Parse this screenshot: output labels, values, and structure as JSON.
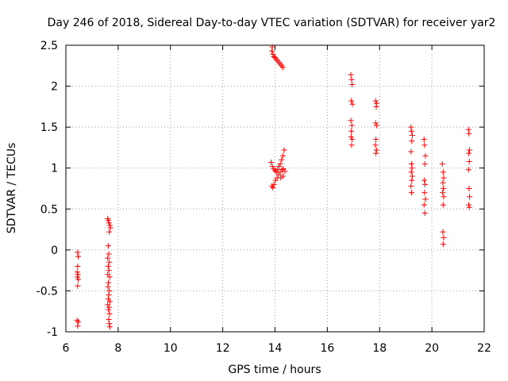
{
  "chart_data": {
    "type": "scatter",
    "title": "Day 246 of 2018, Sidereal Day-to-day VTEC variation (SDTVAR) for receiver yar2",
    "xlabel": "GPS time / hours",
    "ylabel": "SDTVAR / TECUs",
    "xlim": [
      6,
      22
    ],
    "ylim": [
      -1,
      2.5
    ],
    "xticks": [
      6,
      8,
      10,
      12,
      14,
      16,
      18,
      20,
      22
    ],
    "yticks": [
      -1,
      -0.5,
      0,
      0.5,
      1,
      1.5,
      2,
      2.5
    ],
    "xtick_labels": [
      "6",
      "8",
      "10",
      "12",
      "14",
      "16",
      "18",
      "20",
      "22"
    ],
    "ytick_labels": [
      "-1",
      "-0.5",
      "0",
      "0.5",
      "1",
      "1.5",
      "2",
      "2.5"
    ],
    "grid": true,
    "marker": "+",
    "marker_color": "#ff0000",
    "series": [
      {
        "name": "SDTVAR",
        "points": [
          [
            6.45,
            -0.03
          ],
          [
            6.47,
            -0.08
          ],
          [
            6.45,
            -0.2
          ],
          [
            6.43,
            -0.27
          ],
          [
            6.46,
            -0.3
          ],
          [
            6.44,
            -0.33
          ],
          [
            6.47,
            -0.36
          ],
          [
            6.45,
            -0.44
          ],
          [
            6.43,
            -0.86
          ],
          [
            6.47,
            -0.88
          ],
          [
            6.45,
            -0.93
          ],
          [
            7.6,
            0.38
          ],
          [
            7.63,
            0.36
          ],
          [
            7.65,
            0.33
          ],
          [
            7.68,
            0.3
          ],
          [
            7.7,
            0.27
          ],
          [
            7.66,
            0.22
          ],
          [
            7.62,
            0.05
          ],
          [
            7.64,
            -0.05
          ],
          [
            7.6,
            -0.1
          ],
          [
            7.66,
            -0.15
          ],
          [
            7.62,
            -0.2
          ],
          [
            7.65,
            -0.25
          ],
          [
            7.6,
            -0.3
          ],
          [
            7.67,
            -0.33
          ],
          [
            7.63,
            -0.4
          ],
          [
            7.61,
            -0.45
          ],
          [
            7.66,
            -0.5
          ],
          [
            7.64,
            -0.55
          ],
          [
            7.62,
            -0.6
          ],
          [
            7.68,
            -0.63
          ],
          [
            7.6,
            -0.67
          ],
          [
            7.65,
            -0.7
          ],
          [
            7.63,
            -0.73
          ],
          [
            7.67,
            -0.78
          ],
          [
            7.64,
            -0.85
          ],
          [
            7.66,
            -0.9
          ],
          [
            7.68,
            -0.94
          ],
          [
            13.9,
            2.48
          ],
          [
            13.88,
            2.43
          ],
          [
            13.92,
            2.39
          ],
          [
            13.95,
            2.36
          ],
          [
            14.0,
            2.35
          ],
          [
            14.05,
            2.33
          ],
          [
            14.1,
            2.31
          ],
          [
            14.15,
            2.29
          ],
          [
            14.2,
            2.27
          ],
          [
            14.25,
            2.25
          ],
          [
            14.3,
            2.23
          ],
          [
            13.85,
            1.07
          ],
          [
            13.9,
            1.02
          ],
          [
            13.95,
            0.99
          ],
          [
            14.0,
            0.97
          ],
          [
            14.05,
            0.95
          ],
          [
            14.1,
            0.98
          ],
          [
            14.15,
            1.02
          ],
          [
            14.2,
            1.05
          ],
          [
            14.25,
            1.1
          ],
          [
            14.3,
            1.15
          ],
          [
            14.35,
            1.22
          ],
          [
            13.88,
            0.78
          ],
          [
            13.92,
            0.76
          ],
          [
            13.96,
            0.8
          ],
          [
            14.02,
            0.85
          ],
          [
            14.08,
            0.88
          ],
          [
            14.14,
            0.92
          ],
          [
            14.2,
            0.95
          ],
          [
            14.26,
            0.98
          ],
          [
            14.32,
            0.99
          ],
          [
            14.38,
            0.96
          ],
          [
            14.3,
            0.9
          ],
          [
            14.22,
            0.88
          ],
          [
            16.9,
            2.14
          ],
          [
            16.93,
            2.08
          ],
          [
            16.95,
            2.02
          ],
          [
            16.92,
            1.82
          ],
          [
            16.96,
            1.78
          ],
          [
            16.9,
            1.58
          ],
          [
            16.94,
            1.52
          ],
          [
            16.92,
            1.45
          ],
          [
            16.91,
            1.38
          ],
          [
            16.95,
            1.35
          ],
          [
            16.93,
            1.28
          ],
          [
            17.85,
            1.82
          ],
          [
            17.88,
            1.79
          ],
          [
            17.87,
            1.75
          ],
          [
            17.85,
            1.55
          ],
          [
            17.88,
            1.52
          ],
          [
            17.86,
            1.35
          ],
          [
            17.84,
            1.28
          ],
          [
            17.88,
            1.22
          ],
          [
            17.86,
            1.18
          ],
          [
            19.2,
            1.5
          ],
          [
            19.22,
            1.45
          ],
          [
            19.25,
            1.4
          ],
          [
            19.23,
            1.33
          ],
          [
            19.2,
            1.2
          ],
          [
            19.22,
            1.05
          ],
          [
            19.24,
            1.0
          ],
          [
            19.21,
            0.95
          ],
          [
            19.25,
            0.9
          ],
          [
            19.23,
            0.85
          ],
          [
            19.2,
            0.78
          ],
          [
            19.22,
            0.7
          ],
          [
            19.7,
            1.35
          ],
          [
            19.72,
            1.28
          ],
          [
            19.75,
            1.15
          ],
          [
            19.73,
            1.05
          ],
          [
            19.71,
            0.85
          ],
          [
            19.74,
            0.8
          ],
          [
            19.72,
            0.7
          ],
          [
            19.75,
            0.62
          ],
          [
            19.7,
            0.55
          ],
          [
            19.73,
            0.45
          ],
          [
            20.4,
            1.05
          ],
          [
            20.43,
            0.95
          ],
          [
            20.45,
            0.88
          ],
          [
            20.42,
            0.82
          ],
          [
            20.44,
            0.75
          ],
          [
            20.41,
            0.7
          ],
          [
            20.45,
            0.65
          ],
          [
            20.43,
            0.55
          ],
          [
            20.42,
            0.22
          ],
          [
            20.45,
            0.15
          ],
          [
            20.43,
            0.07
          ],
          [
            21.4,
            1.47
          ],
          [
            21.42,
            1.42
          ],
          [
            21.44,
            1.22
          ],
          [
            21.41,
            1.18
          ],
          [
            21.43,
            1.08
          ],
          [
            21.4,
            0.98
          ],
          [
            21.42,
            0.75
          ],
          [
            21.44,
            0.65
          ],
          [
            21.41,
            0.55
          ],
          [
            21.43,
            0.52
          ]
        ]
      }
    ]
  }
}
